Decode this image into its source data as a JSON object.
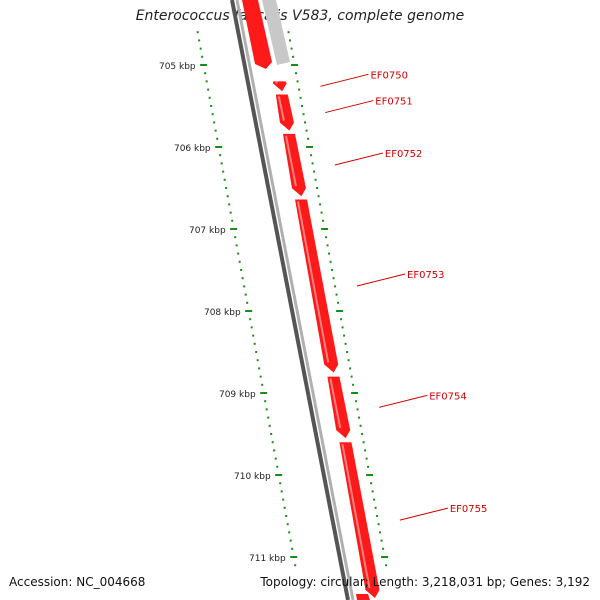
{
  "title": "Enterococcus faecalis V583, complete genome",
  "footer": {
    "accession": "Accession: NC_004668",
    "summary": "Topology: circular; Length: 3,218,031 bp; Genes: 3,192"
  },
  "colors": {
    "gene": "#ff1a1a",
    "gene_grey": "#c8c8c8",
    "backbone": "#808080",
    "tick": "#1a8a1a",
    "label": "#cc0000"
  },
  "ticks": [
    {
      "label": "705 kbp",
      "kbp": 705
    },
    {
      "label": "706 kbp",
      "kbp": 706
    },
    {
      "label": "707 kbp",
      "kbp": 707
    },
    {
      "label": "708 kbp",
      "kbp": 708
    },
    {
      "label": "709 kbp",
      "kbp": 709
    },
    {
      "label": "710 kbp",
      "kbp": 710
    },
    {
      "label": "711 kbp",
      "kbp": 711
    }
  ],
  "genes": [
    {
      "name": "EF0750",
      "start_kbp": 705.2,
      "end_kbp": 705.32
    },
    {
      "name": "EF0751",
      "start_kbp": 705.36,
      "end_kbp": 705.8
    },
    {
      "name": "EF0752",
      "start_kbp": 705.84,
      "end_kbp": 706.6
    },
    {
      "name": "EF0753",
      "start_kbp": 706.64,
      "end_kbp": 708.75
    },
    {
      "name": "EF0754",
      "start_kbp": 708.8,
      "end_kbp": 709.55
    },
    {
      "name": "EF0755",
      "start_kbp": 709.6,
      "end_kbp": 711.5
    }
  ]
}
